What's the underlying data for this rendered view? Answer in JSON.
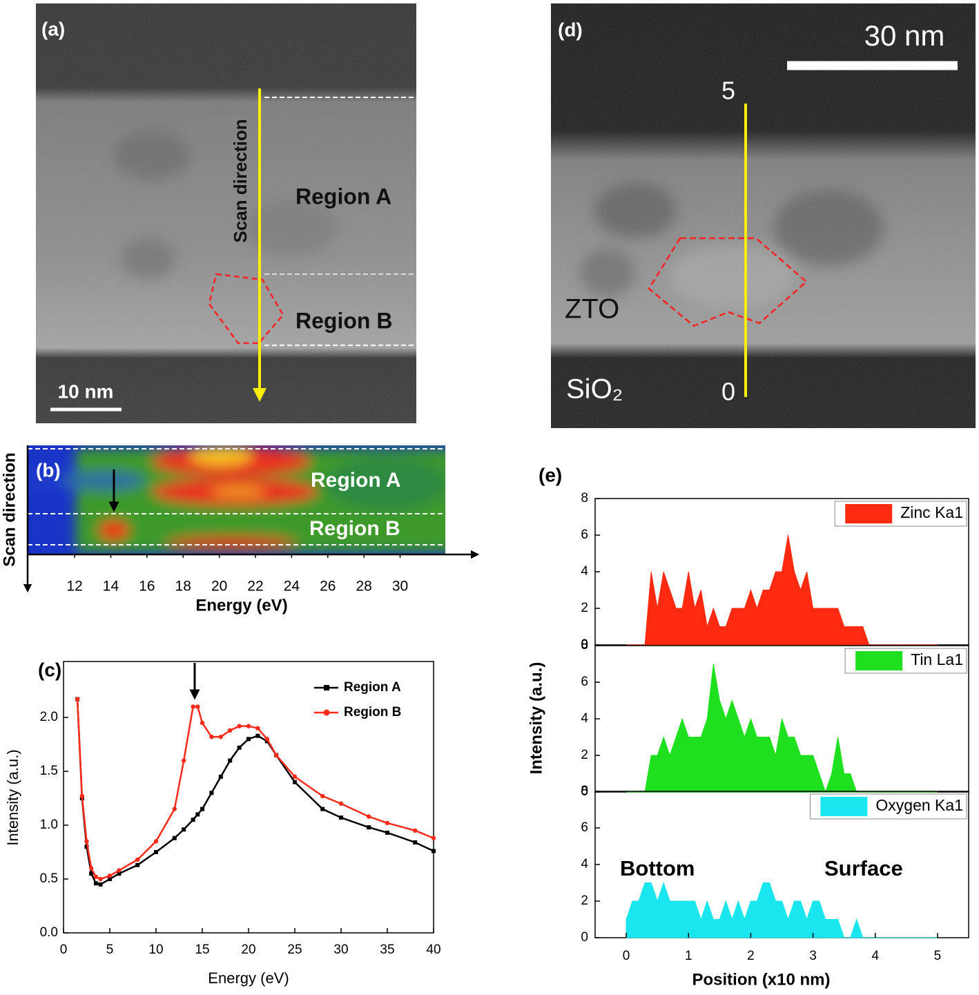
{
  "images": [
    {
      "label": "(a)",
      "scale_bar": "10 nm",
      "scan": "Scan direction",
      "regions": [
        "Region A",
        "Region B"
      ]
    },
    {
      "label": "(d)",
      "scale_bar": "30 nm",
      "line_ends": [
        "5",
        "0"
      ],
      "layers": [
        "ZTO",
        "SiO₂"
      ]
    }
  ],
  "chart_data": [
    {
      "type": "heatmap",
      "label": "(b)",
      "xlabel": "Energy (eV)",
      "ylabel": "Scan direction",
      "xlim": [
        9.4,
        32.5
      ],
      "xticks": [
        12,
        14,
        16,
        18,
        20,
        22,
        24,
        26,
        28,
        30
      ],
      "annotations": [
        "Region A",
        "Region B"
      ]
    },
    {
      "type": "line",
      "label": "(c)",
      "xlabel": "Energy (eV)",
      "ylabel": "Intensity (a.u.)",
      "xlim": [
        0,
        40
      ],
      "xticks": [
        0,
        5,
        10,
        15,
        20,
        25,
        30,
        35,
        40
      ],
      "ylim": [
        0,
        2.52
      ],
      "yticks": [
        {
          "value": 0,
          "label": "0.0"
        },
        0.5,
        {
          "value": 1,
          "label": "1.0"
        },
        1.5,
        {
          "value": 2,
          "label": "2.0"
        }
      ],
      "x": [
        1.5,
        2,
        2.5,
        3,
        3.5,
        4,
        5,
        6,
        8,
        10,
        12,
        13,
        14,
        14.5,
        15,
        16,
        17,
        18,
        19,
        20,
        21,
        22,
        23,
        25,
        28,
        30,
        33,
        35,
        38,
        40
      ],
      "series": [
        {
          "name": "Region A",
          "color": "#000000",
          "marker": "square",
          "values": [
            2.17,
            1.25,
            0.8,
            0.55,
            0.46,
            0.45,
            0.5,
            0.55,
            0.63,
            0.75,
            0.88,
            0.96,
            1.05,
            1.1,
            1.15,
            1.3,
            1.45,
            1.6,
            1.72,
            1.8,
            1.83,
            1.78,
            1.65,
            1.4,
            1.15,
            1.07,
            0.98,
            0.93,
            0.84,
            0.76
          ]
        },
        {
          "name": "Region B",
          "color": "#ff2a1a",
          "marker": "circle",
          "values": [
            2.17,
            1.27,
            0.85,
            0.6,
            0.52,
            0.5,
            0.53,
            0.58,
            0.68,
            0.85,
            1.15,
            1.6,
            2.1,
            2.1,
            1.95,
            1.82,
            1.82,
            1.88,
            1.92,
            1.92,
            1.9,
            1.8,
            1.65,
            1.45,
            1.27,
            1.2,
            1.08,
            1.02,
            0.95,
            0.88
          ]
        }
      ]
    },
    {
      "type": "area",
      "label": "(e)",
      "xlabel": "Position (x10 nm)",
      "ylabel": "Intensity (a.u.)",
      "xlim": [
        -0.5,
        5.5
      ],
      "xticks": [
        0,
        1,
        2,
        3,
        4,
        5
      ],
      "ylim": [
        0,
        8
      ],
      "yticks": [
        0,
        2,
        4,
        6,
        8
      ],
      "annotations": [
        "Bottom",
        "Surface"
      ],
      "x": [
        0,
        0.1,
        0.2,
        0.3,
        0.4,
        0.5,
        0.6,
        0.7,
        0.8,
        0.9,
        1,
        1.1,
        1.2,
        1.3,
        1.4,
        1.5,
        1.6,
        1.7,
        1.8,
        1.9,
        2,
        2.1,
        2.2,
        2.3,
        2.4,
        2.5,
        2.6,
        2.7,
        2.8,
        2.9,
        3,
        3.1,
        3.2,
        3.3,
        3.4,
        3.5,
        3.6,
        3.7,
        3.8,
        3.9,
        4,
        4.1,
        4.2,
        4.3,
        4.4,
        4.5,
        4.6,
        4.7,
        4.8,
        4.9,
        5
      ],
      "series": [
        {
          "name": "Zinc Ka1",
          "color": "#ff2a10",
          "values": [
            0,
            0,
            0,
            0,
            4,
            2,
            4,
            3,
            2,
            2,
            4,
            2,
            3,
            1,
            2,
            1,
            1,
            2,
            2,
            2,
            3,
            2,
            3,
            3,
            4,
            4,
            6,
            4,
            3,
            4,
            2,
            2,
            2,
            2,
            2,
            1,
            1,
            1,
            1,
            0,
            0,
            0,
            0,
            0,
            0,
            0,
            0,
            0,
            0,
            0,
            0
          ]
        },
        {
          "name": "Tin La1",
          "color": "#1ee01e",
          "values": [
            0,
            0,
            0,
            0,
            2,
            2,
            3,
            2,
            3,
            4,
            3,
            3,
            3,
            4,
            7,
            5,
            4,
            5,
            4,
            3,
            4,
            3,
            3,
            3,
            2,
            4,
            3,
            3,
            2,
            2,
            2,
            1,
            0,
            1,
            3,
            1,
            1,
            0,
            0,
            0,
            0,
            0,
            0,
            0,
            0,
            0,
            0,
            0,
            0,
            0,
            0
          ]
        },
        {
          "name": "Oxygen Ka1",
          "color": "#19e6ee",
          "values": [
            1,
            2,
            2,
            3,
            3,
            2,
            3,
            2,
            2,
            2,
            2,
            2,
            1,
            2,
            1,
            1,
            2,
            1,
            2,
            1,
            2,
            2,
            3,
            3,
            2,
            2,
            1,
            2,
            2,
            1,
            2,
            2,
            1,
            1,
            1,
            0,
            0,
            1,
            0,
            0,
            0,
            0,
            0,
            0,
            0,
            0,
            0,
            0,
            0,
            0,
            0
          ]
        }
      ]
    }
  ]
}
